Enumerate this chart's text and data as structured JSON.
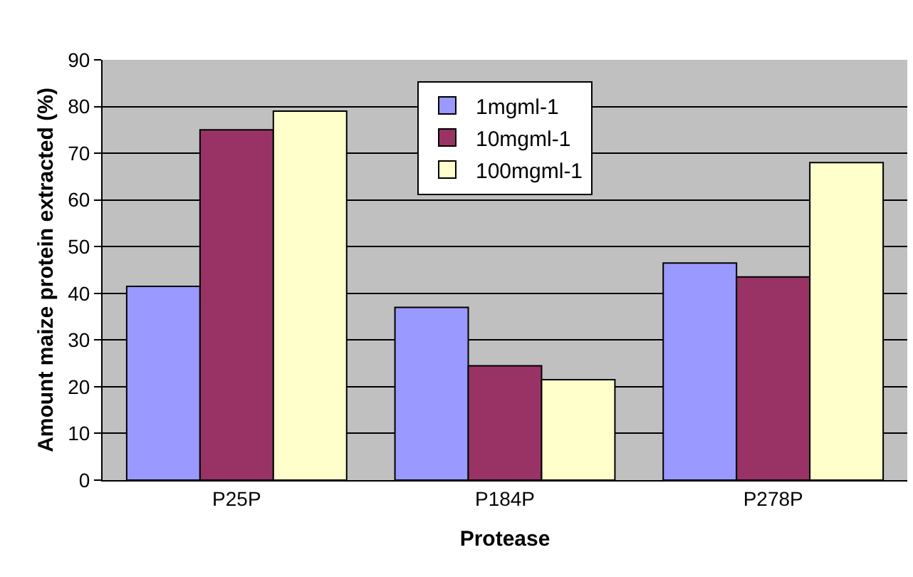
{
  "chart_data": {
    "type": "bar",
    "xlabel": "Protease",
    "ylabel": "Amount maize protein extracted (%)",
    "categories": [
      "P25P",
      "P184P",
      "P278P"
    ],
    "series": [
      {
        "name": "1mgml-1",
        "color": "#9999ff",
        "values": [
          41.5,
          37,
          46.5
        ]
      },
      {
        "name": "10mgml-1",
        "color": "#993366",
        "values": [
          75,
          24.5,
          43.5
        ]
      },
      {
        "name": "100mgml-1",
        "color": "#ffffcc",
        "values": [
          79,
          21.5,
          68
        ]
      }
    ],
    "ylim": [
      0,
      90
    ],
    "yticks": [
      0,
      10,
      20,
      30,
      40,
      50,
      60,
      70,
      80,
      90
    ],
    "grid": "y",
    "legend": "top"
  }
}
